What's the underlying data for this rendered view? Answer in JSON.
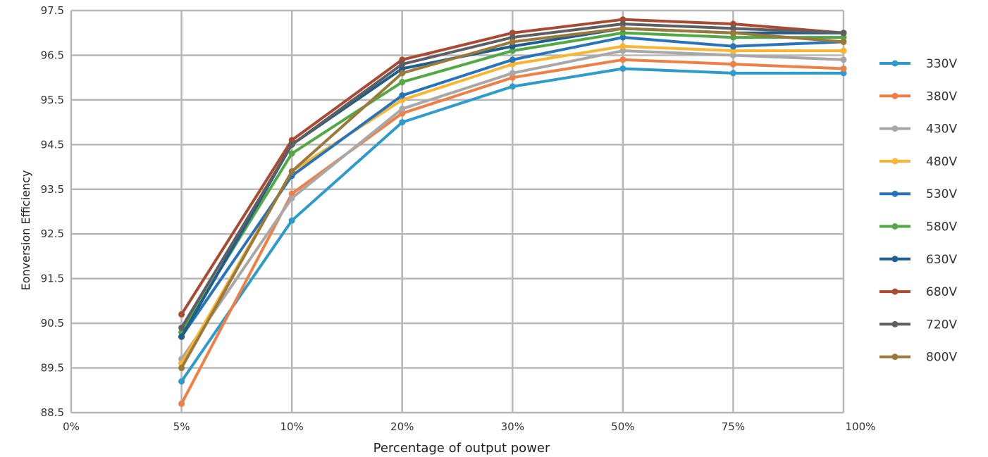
{
  "chart_data": {
    "type": "line",
    "title": "",
    "xlabel": "Percentage of output power",
    "ylabel": "Eonversion Efficiency",
    "x_tick_labels": [
      "0%",
      "5%",
      "10%",
      "20%",
      "30%",
      "50%",
      "75%",
      "100%"
    ],
    "y_tick_labels": [
      "97.5",
      "96.5",
      "95.5",
      "94.5",
      "93.5",
      "92.5",
      "91.5",
      "90.5",
      "89.5",
      "88.5"
    ],
    "categories": [
      "5%",
      "10%",
      "20%",
      "30%",
      "50%",
      "75%",
      "100%"
    ],
    "ylim": [
      88.5,
      97.5
    ],
    "grid": true,
    "legend_position": "right",
    "series": [
      {
        "name": "330V",
        "color": "#2E9BCB",
        "values": [
          89.2,
          92.8,
          95.0,
          95.8,
          96.2,
          96.1,
          96.1
        ]
      },
      {
        "name": "380V",
        "color": "#F07F45",
        "values": [
          88.7,
          93.4,
          95.2,
          96.0,
          96.4,
          96.3,
          96.2
        ]
      },
      {
        "name": "430V",
        "color": "#A8A8A8",
        "values": [
          89.7,
          93.3,
          95.3,
          96.1,
          96.6,
          96.5,
          96.4
        ]
      },
      {
        "name": "480V",
        "color": "#F9B534",
        "values": [
          89.6,
          93.9,
          95.5,
          96.3,
          96.7,
          96.6,
          96.6
        ]
      },
      {
        "name": "530V",
        "color": "#2874BA",
        "values": [
          90.2,
          93.8,
          95.6,
          96.4,
          96.9,
          96.7,
          96.8
        ]
      },
      {
        "name": "580V",
        "color": "#53A846",
        "values": [
          90.3,
          94.3,
          95.9,
          96.6,
          97.0,
          96.9,
          96.9
        ]
      },
      {
        "name": "630V",
        "color": "#1D5E8E",
        "values": [
          90.2,
          94.5,
          96.2,
          96.7,
          97.1,
          97.0,
          97.0
        ]
      },
      {
        "name": "680V",
        "color": "#A94A32",
        "values": [
          90.7,
          94.6,
          96.4,
          97.0,
          97.3,
          97.2,
          97.0
        ]
      },
      {
        "name": "720V",
        "color": "#5F5F63",
        "values": [
          90.4,
          94.5,
          96.3,
          96.9,
          97.2,
          97.1,
          97.0
        ]
      },
      {
        "name": "800V",
        "color": "#9A7A3A",
        "values": [
          89.5,
          93.9,
          96.1,
          96.8,
          97.1,
          97.0,
          96.8
        ]
      }
    ]
  }
}
